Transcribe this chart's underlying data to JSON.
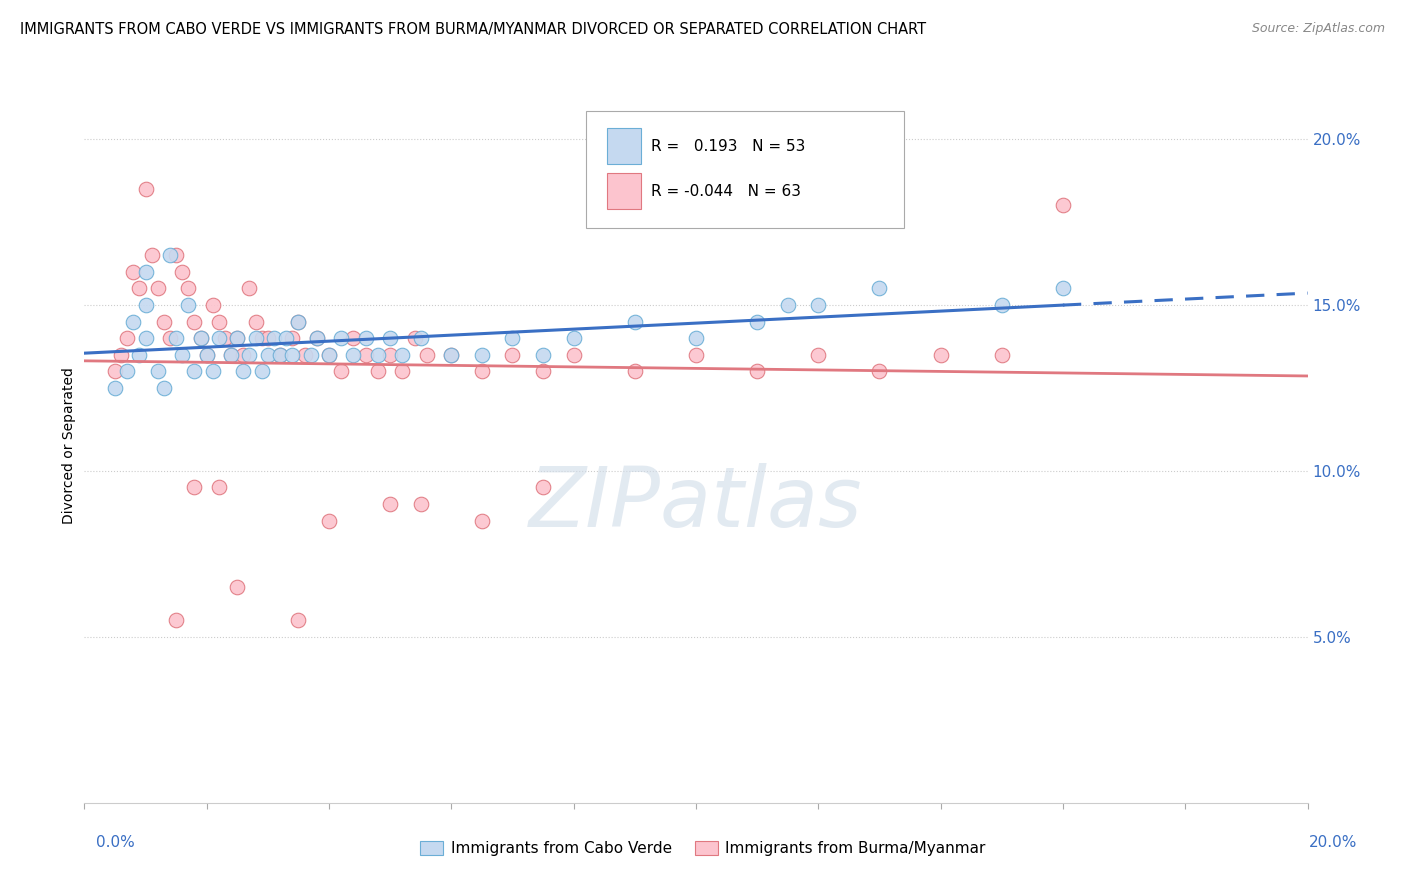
{
  "title": "IMMIGRANTS FROM CABO VERDE VS IMMIGRANTS FROM BURMA/MYANMAR DIVORCED OR SEPARATED CORRELATION CHART",
  "source": "Source: ZipAtlas.com",
  "ylabel": "Divorced or Separated",
  "ytick_labels": [
    "5.0%",
    "10.0%",
    "15.0%",
    "20.0%"
  ],
  "ytick_values": [
    0.05,
    0.1,
    0.15,
    0.2
  ],
  "xlim": [
    0.0,
    0.2
  ],
  "ylim": [
    0.0,
    0.215
  ],
  "legend_label1": "Immigrants from Cabo Verde",
  "legend_label2": "Immigrants from Burma/Myanmar",
  "watermark": "ZIPatlas",
  "blue_color": "#c5d9f0",
  "blue_edge": "#6baed6",
  "pink_color": "#fcc4ce",
  "pink_edge": "#e07880",
  "blue_line_color": "#3a6fc4",
  "pink_line_color": "#e07880",
  "cabo_verde_x": [
    0.005,
    0.007,
    0.008,
    0.009,
    0.01,
    0.01,
    0.01,
    0.012,
    0.013,
    0.014,
    0.015,
    0.016,
    0.017,
    0.018,
    0.019,
    0.02,
    0.021,
    0.022,
    0.024,
    0.025,
    0.026,
    0.027,
    0.028,
    0.029,
    0.03,
    0.031,
    0.032,
    0.033,
    0.034,
    0.035,
    0.037,
    0.038,
    0.04,
    0.042,
    0.044,
    0.046,
    0.048,
    0.05,
    0.052,
    0.055,
    0.06,
    0.065,
    0.07,
    0.075,
    0.08,
    0.09,
    0.1,
    0.11,
    0.115,
    0.12,
    0.13,
    0.15,
    0.16
  ],
  "cabo_verde_y": [
    0.125,
    0.13,
    0.145,
    0.135,
    0.15,
    0.14,
    0.16,
    0.13,
    0.125,
    0.165,
    0.14,
    0.135,
    0.15,
    0.13,
    0.14,
    0.135,
    0.13,
    0.14,
    0.135,
    0.14,
    0.13,
    0.135,
    0.14,
    0.13,
    0.135,
    0.14,
    0.135,
    0.14,
    0.135,
    0.145,
    0.135,
    0.14,
    0.135,
    0.14,
    0.135,
    0.14,
    0.135,
    0.14,
    0.135,
    0.14,
    0.135,
    0.135,
    0.14,
    0.135,
    0.14,
    0.145,
    0.14,
    0.145,
    0.15,
    0.15,
    0.155,
    0.15,
    0.155
  ],
  "burma_x": [
    0.005,
    0.006,
    0.007,
    0.008,
    0.009,
    0.01,
    0.011,
    0.012,
    0.013,
    0.014,
    0.015,
    0.016,
    0.017,
    0.018,
    0.019,
    0.02,
    0.021,
    0.022,
    0.023,
    0.024,
    0.025,
    0.026,
    0.027,
    0.028,
    0.029,
    0.03,
    0.032,
    0.034,
    0.035,
    0.036,
    0.038,
    0.04,
    0.042,
    0.044,
    0.046,
    0.048,
    0.05,
    0.052,
    0.054,
    0.056,
    0.06,
    0.065,
    0.07,
    0.075,
    0.08,
    0.09,
    0.1,
    0.11,
    0.12,
    0.13,
    0.14,
    0.15,
    0.16,
    0.05,
    0.04,
    0.055,
    0.065,
    0.035,
    0.025,
    0.015,
    0.018,
    0.022,
    0.075
  ],
  "burma_y": [
    0.13,
    0.135,
    0.14,
    0.16,
    0.155,
    0.185,
    0.165,
    0.155,
    0.145,
    0.14,
    0.165,
    0.16,
    0.155,
    0.145,
    0.14,
    0.135,
    0.15,
    0.145,
    0.14,
    0.135,
    0.14,
    0.135,
    0.155,
    0.145,
    0.14,
    0.14,
    0.135,
    0.14,
    0.145,
    0.135,
    0.14,
    0.135,
    0.13,
    0.14,
    0.135,
    0.13,
    0.135,
    0.13,
    0.14,
    0.135,
    0.135,
    0.13,
    0.135,
    0.13,
    0.135,
    0.13,
    0.135,
    0.13,
    0.135,
    0.13,
    0.135,
    0.135,
    0.18,
    0.09,
    0.085,
    0.09,
    0.085,
    0.055,
    0.065,
    0.055,
    0.095,
    0.095,
    0.095
  ]
}
